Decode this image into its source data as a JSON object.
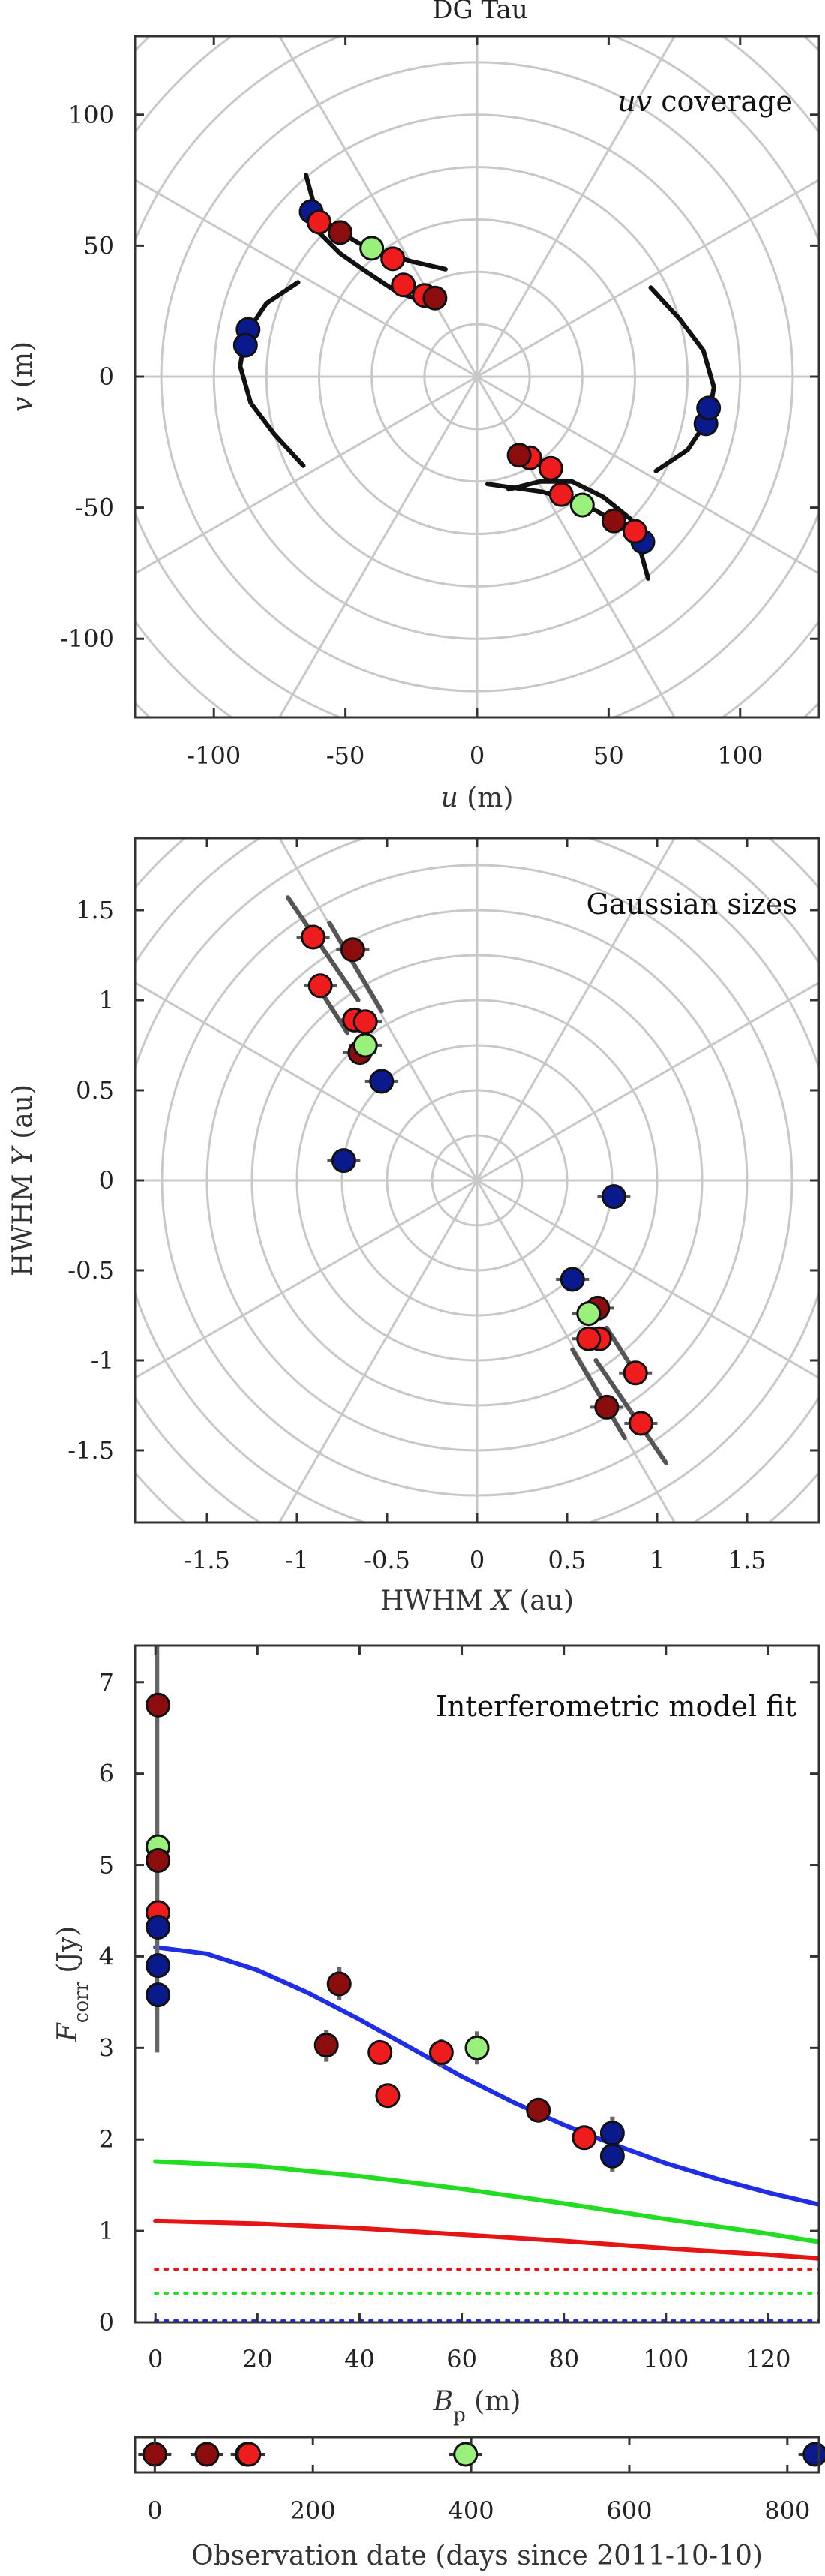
{
  "title": "DG Tau",
  "colors": {
    "blue": "#0a1a8c",
    "red": "#ee1c1c",
    "darkred": "#8b0d0d",
    "green": "#99f07a",
    "fit_blue": "#1f2ee6",
    "fit_green": "#22dd22",
    "fit_red": "#e61515",
    "grid": "#c8c8c8"
  },
  "chart_data": [
    {
      "type": "scatter",
      "name": "uv",
      "annotation_italic": "uv",
      "annotation_text": " coverage",
      "xlabel_italic": "u",
      "xlabel_rest": " (m)",
      "ylabel_italic": "v",
      "ylabel_rest": " (m)",
      "xlim": [
        -130,
        130
      ],
      "ylim": [
        -130,
        130
      ],
      "xticks": [
        -100,
        -50,
        0,
        50,
        100
      ],
      "yticks": [
        100,
        50,
        0,
        -50,
        -100
      ],
      "polar_grid": {
        "radii": [
          20,
          40,
          60,
          80,
          100,
          120,
          140,
          160,
          180
        ],
        "spoke_angles_deg": [
          0,
          30,
          60,
          90,
          120,
          150,
          180,
          210,
          240,
          270,
          300,
          330
        ]
      },
      "tracks": [
        [
          [
            -65,
            77
          ],
          [
            -62,
            66
          ],
          [
            -55,
            57
          ],
          [
            -45,
            51
          ],
          [
            -35,
            47
          ],
          [
            -25,
            44
          ],
          [
            -12,
            41
          ]
        ],
        [
          [
            -18,
            28
          ],
          [
            -30,
            32
          ],
          [
            -42,
            40
          ],
          [
            -52,
            47
          ],
          [
            -60,
            55
          ],
          [
            -66,
            63
          ]
        ],
        [
          [
            -68,
            36
          ],
          [
            -80,
            28
          ],
          [
            -88,
            16
          ],
          [
            -90,
            4
          ],
          [
            -86,
            -10
          ],
          [
            -77,
            -22
          ],
          [
            -66,
            -34
          ]
        ],
        [
          [
            65,
            -77
          ],
          [
            62,
            -66
          ],
          [
            55,
            -57
          ],
          [
            45,
            -51
          ],
          [
            35,
            -47
          ],
          [
            25,
            -44
          ],
          [
            4,
            -41
          ]
        ],
        [
          [
            12,
            -43
          ],
          [
            24,
            -40
          ],
          [
            36,
            -40
          ],
          [
            48,
            -46
          ],
          [
            58,
            -54
          ],
          [
            66,
            -63
          ]
        ],
        [
          [
            68,
            -36
          ],
          [
            80,
            -28
          ],
          [
            88,
            -16
          ],
          [
            90,
            -4
          ],
          [
            86,
            10
          ],
          [
            77,
            22
          ],
          [
            66,
            34
          ]
        ]
      ],
      "points": [
        {
          "u": -63,
          "v": 63,
          "c": "blue"
        },
        {
          "u": -60,
          "v": 59,
          "c": "red"
        },
        {
          "u": -52,
          "v": 55,
          "c": "darkred"
        },
        {
          "u": -40,
          "v": 49,
          "c": "green"
        },
        {
          "u": -32,
          "v": 45,
          "c": "red"
        },
        {
          "u": -28,
          "v": 35,
          "c": "red"
        },
        {
          "u": -20,
          "v": 31,
          "c": "red"
        },
        {
          "u": -16,
          "v": 30,
          "c": "darkred"
        },
        {
          "u": -87,
          "v": 18,
          "c": "blue"
        },
        {
          "u": -88,
          "v": 12,
          "c": "blue"
        },
        {
          "u": 63,
          "v": -63,
          "c": "blue"
        },
        {
          "u": 60,
          "v": -59,
          "c": "red"
        },
        {
          "u": 52,
          "v": -55,
          "c": "darkred"
        },
        {
          "u": 40,
          "v": -49,
          "c": "green"
        },
        {
          "u": 32,
          "v": -45,
          "c": "red"
        },
        {
          "u": 28,
          "v": -35,
          "c": "red"
        },
        {
          "u": 20,
          "v": -31,
          "c": "red"
        },
        {
          "u": 16,
          "v": -30,
          "c": "darkred"
        },
        {
          "u": 87,
          "v": -18,
          "c": "blue"
        },
        {
          "u": 88,
          "v": -12,
          "c": "blue"
        }
      ]
    },
    {
      "type": "scatter",
      "name": "gauss",
      "annotation_text": "Gaussian sizes",
      "xlabel_pre": "HWHM ",
      "xlabel_italic": "X",
      "xlabel_rest": " (au)",
      "ylabel_pre": "HWHM ",
      "ylabel_italic": "Y",
      "ylabel_rest": " (au)",
      "xlim": [
        -1.9,
        1.9
      ],
      "ylim": [
        -1.9,
        1.9
      ],
      "xticks": [
        -1.5,
        -1,
        -0.5,
        0,
        0.5,
        1,
        1.5
      ],
      "xtick_labels": [
        "-1.5",
        "-1",
        "-0.5",
        "0",
        "0.5",
        "1",
        "1.5"
      ],
      "yticks": [
        1.5,
        1,
        0.5,
        0,
        -0.5,
        -1,
        -1.5
      ],
      "ytick_labels": [
        "1.5",
        "1",
        "0.5",
        "0",
        "-0.5",
        "-1",
        "-1.5"
      ],
      "polar_grid": {
        "radii": [
          0.25,
          0.5,
          0.75,
          1,
          1.25,
          1.5,
          1.75,
          2,
          2.25,
          2.5
        ],
        "spoke_angles_deg": [
          0,
          30,
          60,
          90,
          120,
          150,
          180,
          210,
          240,
          270,
          300,
          330
        ]
      },
      "error_bars": [
        [
          [
            -1.05,
            1.57
          ],
          [
            -0.66,
            1.0
          ]
        ],
        [
          [
            -0.82,
            1.43
          ],
          [
            -0.53,
            0.94
          ]
        ],
        [
          [
            -0.9,
            1.1
          ],
          [
            -0.72,
            0.82
          ]
        ],
        [
          [
            1.05,
            -1.57
          ],
          [
            0.66,
            -1.0
          ]
        ],
        [
          [
            0.82,
            -1.43
          ],
          [
            0.53,
            -0.94
          ]
        ],
        [
          [
            0.9,
            -1.1
          ],
          [
            0.72,
            -0.82
          ]
        ]
      ],
      "points": [
        {
          "x": -0.91,
          "y": 1.35,
          "c": "red"
        },
        {
          "x": -0.69,
          "y": 1.28,
          "c": "darkred"
        },
        {
          "x": -0.87,
          "y": 1.08,
          "c": "red"
        },
        {
          "x": -0.68,
          "y": 0.89,
          "c": "red"
        },
        {
          "x": -0.62,
          "y": 0.88,
          "c": "red"
        },
        {
          "x": -0.65,
          "y": 0.71,
          "c": "darkred"
        },
        {
          "x": -0.62,
          "y": 0.75,
          "c": "green"
        },
        {
          "x": -0.53,
          "y": 0.55,
          "c": "blue"
        },
        {
          "x": -0.74,
          "y": 0.11,
          "c": "blue"
        },
        {
          "x": 0.91,
          "y": -1.35,
          "c": "red"
        },
        {
          "x": 0.72,
          "y": -1.26,
          "c": "darkred"
        },
        {
          "x": 0.88,
          "y": -1.07,
          "c": "red"
        },
        {
          "x": 0.68,
          "y": -0.88,
          "c": "red"
        },
        {
          "x": 0.62,
          "y": -0.88,
          "c": "red"
        },
        {
          "x": 0.67,
          "y": -0.71,
          "c": "darkred"
        },
        {
          "x": 0.62,
          "y": -0.74,
          "c": "green"
        },
        {
          "x": 0.53,
          "y": -0.55,
          "c": "blue"
        },
        {
          "x": 0.76,
          "y": -0.09,
          "c": "blue"
        }
      ]
    },
    {
      "type": "line",
      "name": "fit",
      "annotation_text": "Interferometric model fit",
      "xlabel_italic": "B",
      "xlabel_sub": "p",
      "xlabel_rest": " (m)",
      "ylabel_italic": "F",
      "ylabel_sub": "corr",
      "ylabel_rest": " (Jy)",
      "xlim": [
        -4,
        130
      ],
      "ylim": [
        0,
        7.4
      ],
      "xticks": [
        0,
        20,
        40,
        60,
        80,
        100,
        120
      ],
      "yticks": [
        7,
        6,
        5,
        4,
        3,
        2,
        1,
        0
      ],
      "series": [
        {
          "color": "fit_blue",
          "style": "solid",
          "x": [
            0,
            10,
            20,
            30,
            40,
            50,
            60,
            70,
            80,
            90,
            100,
            110,
            120,
            130
          ],
          "y": [
            4.1,
            4.03,
            3.85,
            3.6,
            3.31,
            3.0,
            2.69,
            2.41,
            2.16,
            1.94,
            1.74,
            1.57,
            1.42,
            1.29
          ]
        },
        {
          "color": "fit_green",
          "style": "solid",
          "x": [
            0,
            20,
            40,
            60,
            80,
            100,
            120,
            130
          ],
          "y": [
            1.76,
            1.71,
            1.6,
            1.46,
            1.3,
            1.13,
            0.97,
            0.88
          ]
        },
        {
          "color": "fit_red",
          "style": "solid",
          "x": [
            0,
            20,
            40,
            60,
            80,
            100,
            120,
            130
          ],
          "y": [
            1.11,
            1.08,
            1.03,
            0.96,
            0.89,
            0.81,
            0.74,
            0.7
          ]
        },
        {
          "color": "fit_red",
          "style": "dotted",
          "x": [
            0,
            130
          ],
          "y": [
            0.58,
            0.58
          ]
        },
        {
          "color": "fit_green",
          "style": "dotted",
          "x": [
            0,
            130
          ],
          "y": [
            0.32,
            0.32
          ]
        },
        {
          "color": "fit_blue",
          "style": "dotted",
          "x": [
            0,
            130
          ],
          "y": [
            0.02,
            0.02
          ]
        }
      ],
      "error_lines": [
        {
          "x": 0.3,
          "y0": 2.95,
          "y1": 7.4
        },
        {
          "x": 33.5,
          "y0": 2.85,
          "y1": 3.2
        },
        {
          "x": 36,
          "y0": 3.52,
          "y1": 3.88
        },
        {
          "x": 56,
          "y0": 2.8,
          "y1": 3.1
        },
        {
          "x": 63,
          "y0": 2.82,
          "y1": 3.18
        },
        {
          "x": 75,
          "y0": 2.2,
          "y1": 2.45
        },
        {
          "x": 89.5,
          "y0": 1.65,
          "y1": 2.25
        }
      ],
      "points": [
        {
          "x": 0.5,
          "y": 6.75,
          "c": "darkred"
        },
        {
          "x": 0.5,
          "y": 5.2,
          "c": "green"
        },
        {
          "x": 0.5,
          "y": 5.05,
          "c": "darkred"
        },
        {
          "x": 0.5,
          "y": 4.48,
          "c": "red"
        },
        {
          "x": 0.5,
          "y": 4.32,
          "c": "blue"
        },
        {
          "x": 0.5,
          "y": 3.9,
          "c": "blue"
        },
        {
          "x": 0.5,
          "y": 3.58,
          "c": "blue"
        },
        {
          "x": 33.5,
          "y": 3.03,
          "c": "darkred"
        },
        {
          "x": 36,
          "y": 3.7,
          "c": "darkred"
        },
        {
          "x": 44,
          "y": 2.95,
          "c": "red"
        },
        {
          "x": 45.5,
          "y": 2.48,
          "c": "red"
        },
        {
          "x": 56,
          "y": 2.95,
          "c": "red"
        },
        {
          "x": 63,
          "y": 3.0,
          "c": "green"
        },
        {
          "x": 75,
          "y": 2.32,
          "c": "darkred"
        },
        {
          "x": 84,
          "y": 2.02,
          "c": "red"
        },
        {
          "x": 89.5,
          "y": 2.07,
          "c": "blue"
        },
        {
          "x": 89.5,
          "y": 1.82,
          "c": "blue"
        }
      ]
    },
    {
      "type": "scatter",
      "name": "dates",
      "xlabel": "Observation date (days since 2011-10-10)",
      "xlim": [
        -25,
        840
      ],
      "xticks": [
        0,
        200,
        400,
        600,
        800
      ],
      "points": [
        {
          "x": 0,
          "c": "darkred"
        },
        {
          "x": 66,
          "c": "darkred"
        },
        {
          "x": 117,
          "c": "darkred"
        },
        {
          "x": 119,
          "c": "red"
        },
        {
          "x": 393,
          "c": "green"
        },
        {
          "x": 835,
          "c": "blue"
        }
      ]
    }
  ]
}
